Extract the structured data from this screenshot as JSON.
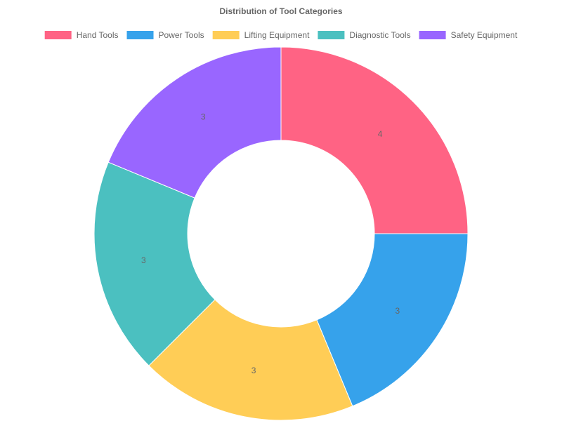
{
  "chart_data": {
    "type": "doughnut",
    "title": "Distribution of Tool Categories",
    "categories": [
      "Hand Tools",
      "Power Tools",
      "Lifting Equipment",
      "Diagnostic Tools",
      "Safety Equipment"
    ],
    "values": [
      4,
      3,
      3,
      3,
      3
    ],
    "colors": [
      "#ff6384",
      "#36a2eb",
      "#ffcd56",
      "#4bc0c0",
      "#9966ff"
    ],
    "legend": "top"
  }
}
